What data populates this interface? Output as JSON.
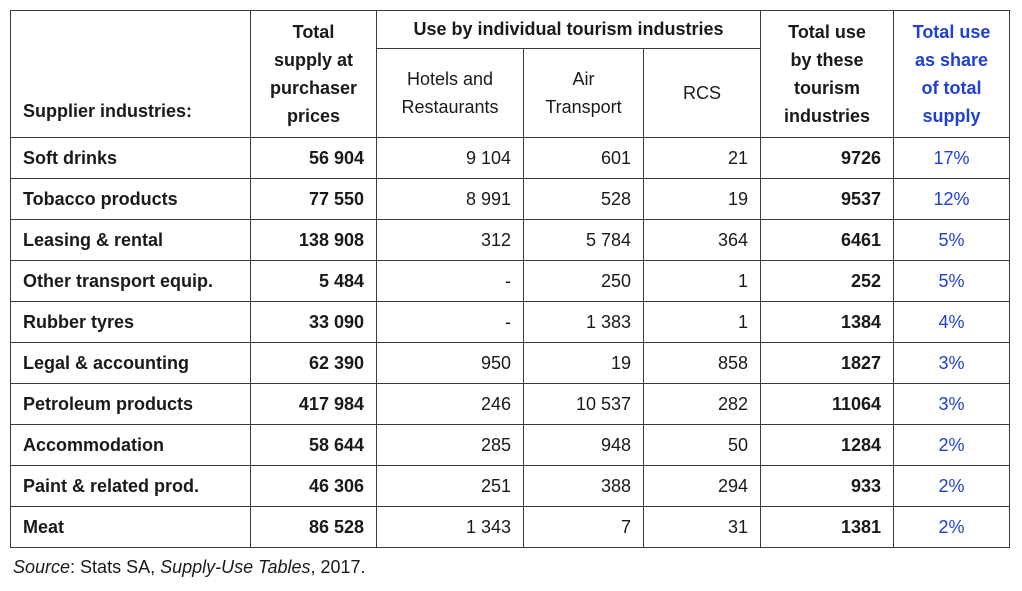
{
  "header": {
    "supplier": "Supplier industries:",
    "total_supply": [
      "Total",
      "supply at",
      "purchaser",
      "prices"
    ],
    "group": "Use by individual tourism industries",
    "sub_hotels": [
      "Hotels and",
      "Restaurants"
    ],
    "sub_air": [
      "Air",
      "Transport"
    ],
    "sub_rcs": "RCS",
    "total_use": [
      "Total use",
      "by these",
      "tourism",
      "industries"
    ],
    "share": [
      "Total use",
      "as share",
      "of total",
      "supply"
    ]
  },
  "colors": {
    "share_blue": "#1f3fd6",
    "border": "#3a3a3a"
  },
  "rows": [
    {
      "name": "Soft drinks",
      "supply": "56 904",
      "hotels": "9 104",
      "air": "601",
      "rcs": "21",
      "total": "9726",
      "share": "17%"
    },
    {
      "name": "Tobacco products",
      "supply": "77 550",
      "hotels": "8 991",
      "air": "528",
      "rcs": "19",
      "total": "9537",
      "share": "12%"
    },
    {
      "name": "Leasing & rental",
      "supply": "138 908",
      "hotels": "312",
      "air": "5 784",
      "rcs": "364",
      "total": "6461",
      "share": "5%"
    },
    {
      "name": "Other transport equip.",
      "supply": "5 484",
      "hotels": "-",
      "air": "250",
      "rcs": "1",
      "total": "252",
      "share": "5%"
    },
    {
      "name": "Rubber tyres",
      "supply": "33 090",
      "hotels": "-",
      "air": "1 383",
      "rcs": "1",
      "total": "1384",
      "share": "4%"
    },
    {
      "name": "Legal & accounting",
      "supply": "62 390",
      "hotels": "950",
      "air": "19",
      "rcs": "858",
      "total": "1827",
      "share": "3%"
    },
    {
      "name": "Petroleum products",
      "supply": "417 984",
      "hotels": "246",
      "air": "10 537",
      "rcs": "282",
      "total": "11064",
      "share": "3%"
    },
    {
      "name": "Accommodation",
      "supply": "58 644",
      "hotels": "285",
      "air": "948",
      "rcs": "50",
      "total": "1284",
      "share": "2%"
    },
    {
      "name": "Paint & related prod.",
      "supply": "46 306",
      "hotels": "251",
      "air": "388",
      "rcs": "294",
      "total": "933",
      "share": "2%"
    },
    {
      "name": "Meat",
      "supply": "86 528",
      "hotels": "1 343",
      "air": "7",
      "rcs": "31",
      "total": "1381",
      "share": "2%"
    }
  ],
  "source": {
    "label": "Source",
    "sep": ": Stats SA, ",
    "title": "Supply-Use Tables",
    "tail": ", 2017."
  }
}
